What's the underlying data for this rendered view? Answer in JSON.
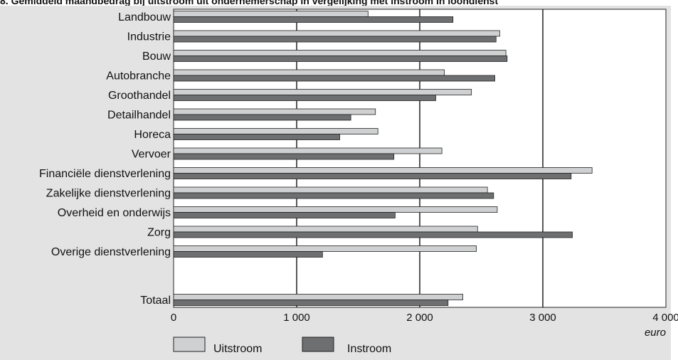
{
  "title": "8. Gemiddeld maandbedrag bij uitstroom uit ondernemerschap in vergelijking met instroom in loondienst",
  "colors": {
    "uitstroom": "#cfd0d1",
    "instroom": "#6e6f70",
    "panel": "#e3e3e3",
    "plot": "#ffffff"
  },
  "chart_data": {
    "type": "bar",
    "orientation": "horizontal",
    "title": "8. Gemiddeld maandbedrag bij uitstroom uit ondernemerschap in vergelijking met instroom in loondienst",
    "categories": [
      "Landbouw",
      "Industrie",
      "Bouw",
      "Autobranche",
      "Groothandel",
      "Detailhandel",
      "Horeca",
      "Vervoer",
      "Financiële dienstverlening",
      "Zakelijke dienstverlening",
      "Overheid en onderwijs",
      "Zorg",
      "Overige dienstverlening",
      "Totaal"
    ],
    "series": [
      {
        "name": "Uitstroom",
        "values": [
          1580,
          2650,
          2700,
          2200,
          2420,
          1640,
          1660,
          2180,
          3400,
          2550,
          2630,
          2470,
          2460,
          2350
        ]
      },
      {
        "name": "Instroom",
        "values": [
          2270,
          2620,
          2710,
          2610,
          2130,
          1440,
          1350,
          1790,
          3230,
          2600,
          1800,
          3240,
          1210,
          2230
        ]
      }
    ],
    "xlim": [
      0,
      4000
    ],
    "xticks": [
      0,
      1000,
      2000,
      3000,
      4000
    ],
    "xtick_labels": [
      "0",
      "1 000",
      "2 000",
      "3 000",
      "4 000"
    ],
    "xunit": "euro",
    "grid": "vertical at 1000, 2000, 3000",
    "legend": "bottom-left"
  }
}
